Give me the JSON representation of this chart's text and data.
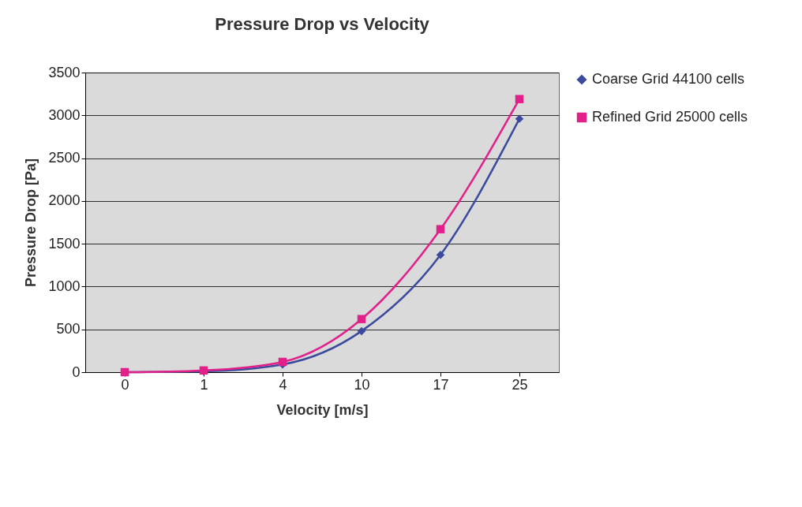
{
  "chart_data": {
    "type": "line",
    "title": "Pressure Drop vs Velocity",
    "xlabel": "Velocity [m/s]",
    "ylabel": "Pressure Drop [Pa]",
    "categories": [
      "0",
      "1",
      "4",
      "10",
      "17",
      "25"
    ],
    "series": [
      {
        "name": "Coarse Grid 44100 cells",
        "color": "#3b4a9c",
        "marker": "diamond",
        "values": [
          0,
          10,
          90,
          480,
          1370,
          2960
        ]
      },
      {
        "name": "Refined Grid 25000 cells",
        "color": "#e2208a",
        "marker": "square",
        "values": [
          0,
          20,
          120,
          620,
          1670,
          3190
        ]
      }
    ],
    "ylim": [
      0,
      3500
    ],
    "yticks": [
      0,
      500,
      1000,
      1500,
      2000,
      2500,
      3000,
      3500
    ],
    "grid": "y",
    "legend": "right",
    "line_style": "solid"
  }
}
